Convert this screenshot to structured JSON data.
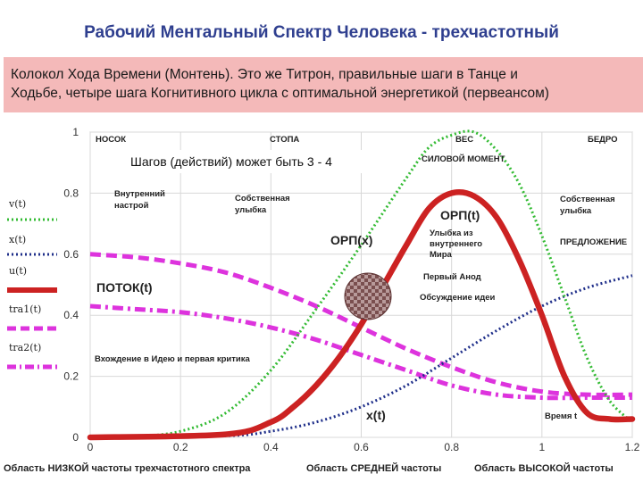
{
  "title": "Рабочий Ментальный Спектр Человека - трехчастотный",
  "subtitle_lines": [
    "Колокол Хода Времени (Монтень). Это же Титрон, правильные шаги в Танце и",
    "Ходьбе, четыре шага Когнитивного цикла с оптимальной энергетикой (первеансом)"
  ],
  "note": "Шагов (действий) может быть 3 - 4",
  "top_labels": [
    "НОСОК",
    "СТОПА",
    "ВЕС",
    "БЕДРО"
  ],
  "annotations": {
    "inner_mood": [
      "Внутренний",
      "настрой"
    ],
    "own_smile_left": [
      "Собственная",
      "улыбка"
    ],
    "own_smile_right": [
      "Собственная",
      "улыбка"
    ],
    "power_moment": "СИЛОВОЙ МОМЕНТ",
    "orp_t": "ОРП(t)",
    "orp_x": "ОРП(x)",
    "smile_inner": [
      "Улыбка из",
      "внутреннего",
      "Мира"
    ],
    "proposal": "ПРЕДЛОЖЕНИЕ",
    "first_anod": "Первый Анод",
    "discussion": "Обсуждение идеи",
    "flow": "ПОТОК(t)",
    "entering": "Вхождение в Идею и первая критика",
    "x_t": "x(t)",
    "time_t": "Время t"
  },
  "bottom_labels": [
    "Область НИЗКОЙ частоты трехчастотного спектра",
    "Область СРЕДНЕЙ частоты",
    "Область ВЫСОКОЙ частоты"
  ],
  "colors": {
    "v": "#33bb33",
    "x": "#1f2f8a",
    "u": "#cc2222",
    "tra": "#dd33dd",
    "title": "#2f3f8f",
    "band": "#f4b9b9"
  },
  "chart_data": {
    "type": "line",
    "xlim": [
      0,
      1.2
    ],
    "ylim": [
      0,
      1
    ],
    "x_ticks": [
      0,
      0.2,
      0.4,
      0.6,
      0.8,
      1,
      1.2
    ],
    "x_tick_labels": [
      "0",
      "0.2",
      "0.4",
      "0.6",
      "0.8",
      "1",
      "1.2"
    ],
    "y_ticks": [
      0,
      0.2,
      0.4,
      0.6,
      0.8,
      1
    ],
    "y_tick_labels": [
      "0",
      "0.2",
      "0.4",
      "0.6",
      "0.8",
      "1"
    ],
    "legend": [
      "v(t)",
      "x(t)",
      "u(t)",
      "tra1(t)",
      "tra2(t)"
    ],
    "series": [
      {
        "name": "v(t)",
        "style": "dotted",
        "color": "#33bb33",
        "x": [
          0,
          0.1,
          0.2,
          0.3,
          0.4,
          0.5,
          0.6,
          0.7,
          0.75,
          0.8,
          0.85,
          0.9,
          0.95,
          1.0,
          1.05,
          1.1,
          1.15,
          1.2
        ],
        "y": [
          0,
          0.003,
          0.02,
          0.08,
          0.22,
          0.42,
          0.63,
          0.85,
          0.95,
          0.99,
          1.0,
          0.94,
          0.83,
          0.66,
          0.46,
          0.26,
          0.12,
          0.05
        ]
      },
      {
        "name": "x(t)",
        "style": "dotted",
        "color": "#1f2f8a",
        "x": [
          0,
          0.3,
          0.4,
          0.5,
          0.6,
          0.7,
          0.8,
          0.9,
          1.0,
          1.1,
          1.2
        ],
        "y": [
          0,
          0.005,
          0.02,
          0.05,
          0.1,
          0.17,
          0.26,
          0.35,
          0.43,
          0.49,
          0.53
        ]
      },
      {
        "name": "u(t)",
        "style": "solid",
        "color": "#cc2222",
        "x": [
          0,
          0.3,
          0.4,
          0.45,
          0.5,
          0.55,
          0.6,
          0.65,
          0.7,
          0.75,
          0.8,
          0.85,
          0.9,
          0.95,
          1.0,
          1.05,
          1.1,
          1.15,
          1.2
        ],
        "y": [
          0,
          0.01,
          0.05,
          0.1,
          0.17,
          0.26,
          0.37,
          0.5,
          0.63,
          0.75,
          0.8,
          0.79,
          0.72,
          0.58,
          0.4,
          0.2,
          0.08,
          0.06,
          0.06
        ]
      },
      {
        "name": "tra1(t)",
        "style": "dashed",
        "color": "#dd33dd",
        "x": [
          0,
          0.1,
          0.2,
          0.3,
          0.4,
          0.5,
          0.6,
          0.7,
          0.8,
          0.9,
          1.0,
          1.1,
          1.2
        ],
        "y": [
          0.6,
          0.59,
          0.57,
          0.54,
          0.49,
          0.43,
          0.36,
          0.29,
          0.23,
          0.18,
          0.15,
          0.14,
          0.14
        ]
      },
      {
        "name": "tra2(t)",
        "style": "dashdot",
        "color": "#dd33dd",
        "x": [
          0,
          0.1,
          0.2,
          0.3,
          0.4,
          0.5,
          0.6,
          0.7,
          0.8,
          0.9,
          1.0,
          1.1,
          1.2
        ],
        "y": [
          0.43,
          0.42,
          0.41,
          0.39,
          0.36,
          0.32,
          0.27,
          0.22,
          0.17,
          0.14,
          0.13,
          0.13,
          0.13
        ]
      }
    ]
  }
}
